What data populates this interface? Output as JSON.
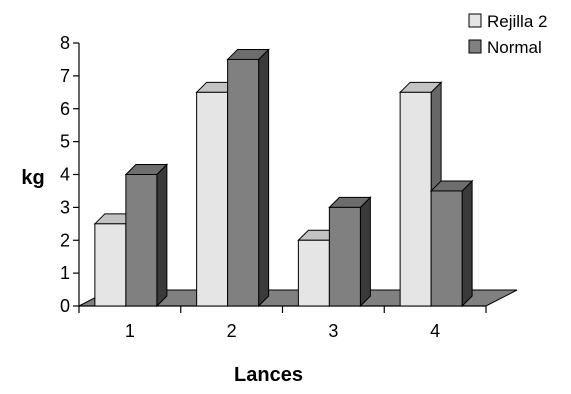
{
  "chart_data": {
    "type": "bar",
    "three_d": true,
    "title": "",
    "xlabel": "Lances",
    "ylabel": "kg",
    "categories": [
      "1",
      "2",
      "3",
      "4"
    ],
    "ylim": [
      0,
      8
    ],
    "yticks": [
      "0",
      "1",
      "2",
      "3",
      "4",
      "5",
      "6",
      "7",
      "8"
    ],
    "grid": false,
    "legend_position": "top-right",
    "series": [
      {
        "name": "Rejilla 2",
        "values": [
          2.5,
          6.5,
          2.0,
          6.5
        ],
        "color": "#e5e5e5"
      },
      {
        "name": "Normal",
        "values": [
          4.0,
          7.5,
          3.0,
          3.5
        ],
        "color": "#808080"
      }
    ],
    "floor_color": "#808080"
  }
}
